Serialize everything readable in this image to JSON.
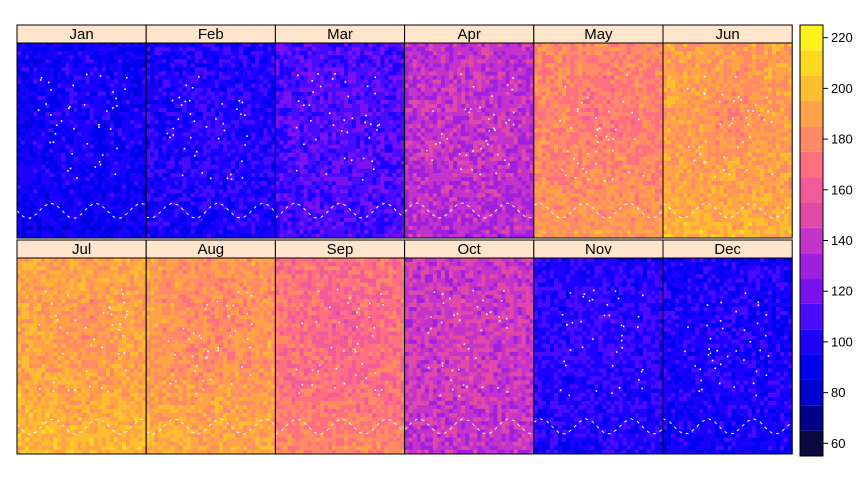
{
  "chart_data": {
    "type": "heatmap",
    "title": "",
    "xlabel": "",
    "ylabel": "",
    "layout": "6 columns x 2 rows of map panels, shared color key on the right",
    "panels": [
      {
        "label": "Jan",
        "mean_value": 95
      },
      {
        "label": "Feb",
        "mean_value": 100
      },
      {
        "label": "Mar",
        "mean_value": 110
      },
      {
        "label": "Apr",
        "mean_value": 138
      },
      {
        "label": "May",
        "mean_value": 178
      },
      {
        "label": "Jun",
        "mean_value": 188
      },
      {
        "label": "Jul",
        "mean_value": 190
      },
      {
        "label": "Aug",
        "mean_value": 185
      },
      {
        "label": "Sep",
        "mean_value": 170
      },
      {
        "label": "Oct",
        "mean_value": 142
      },
      {
        "label": "Nov",
        "mean_value": 102
      },
      {
        "label": "Dec",
        "mean_value": 98
      }
    ],
    "colorkey": {
      "range": [
        55,
        225
      ],
      "ticks": [
        60,
        80,
        100,
        120,
        140,
        160,
        180,
        200,
        220
      ],
      "breaks": [
        55,
        65,
        75,
        85,
        95,
        105,
        115,
        125,
        135,
        145,
        155,
        165,
        175,
        185,
        195,
        205,
        215,
        225
      ],
      "colors": [
        "#0c0840",
        "#00008b",
        "#0000cd",
        "#0000f0",
        "#1e00ff",
        "#4a0cff",
        "#7a12f0",
        "#a020e0",
        "#c433cc",
        "#e04aa6",
        "#f25a9a",
        "#ff6f80",
        "#ff8a66",
        "#ffa248",
        "#ffbe30",
        "#ffd820",
        "#fff21c"
      ]
    },
    "grid": false,
    "legend_position": "right"
  }
}
